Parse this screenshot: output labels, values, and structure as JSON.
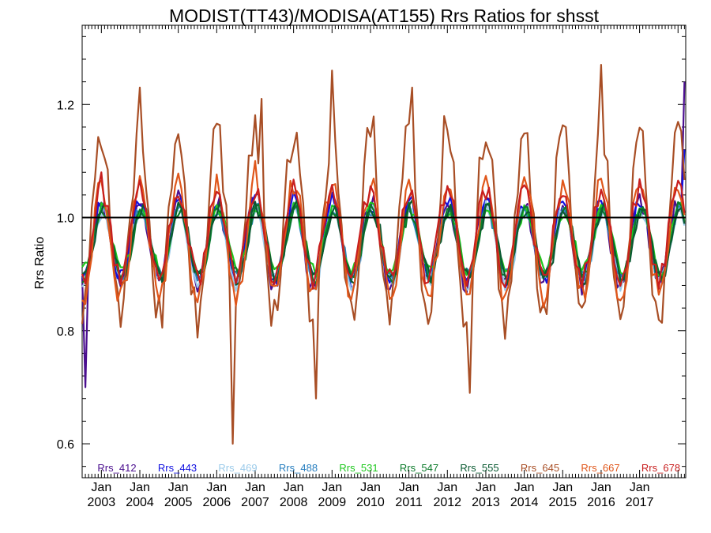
{
  "chart_data": {
    "type": "line",
    "title": "MODIST(TT43)/MODISA(AT155)  Rrs Ratios for shsst",
    "ylabel": "Rrs Ratio",
    "xlabel": "",
    "ylim": [
      0.54,
      1.34
    ],
    "xlim": [
      2002.5,
      2018.2
    ],
    "y_ticks": [
      0.6,
      0.8,
      1.0,
      1.2
    ],
    "y_tick_labels": [
      "0.6",
      "0.8",
      "1.0",
      "1.2"
    ],
    "x_tick_labels": [
      {
        "month": "Jan",
        "year": "2003",
        "x": 2003.0
      },
      {
        "month": "Jan",
        "year": "2004",
        "x": 2004.0
      },
      {
        "month": "Jan",
        "year": "2005",
        "x": 2005.0
      },
      {
        "month": "Jan",
        "year": "2006",
        "x": 2006.0
      },
      {
        "month": "Jan",
        "year": "2007",
        "x": 2007.0
      },
      {
        "month": "Jan",
        "year": "2008",
        "x": 2008.0
      },
      {
        "month": "Jan",
        "year": "2009",
        "x": 2009.0
      },
      {
        "month": "Jan",
        "year": "2010",
        "x": 2010.0
      },
      {
        "month": "Jan",
        "year": "2011",
        "x": 2011.0
      },
      {
        "month": "Jan",
        "year": "2012",
        "x": 2012.0
      },
      {
        "month": "Jan",
        "year": "2013",
        "x": 2013.0
      },
      {
        "month": "Jan",
        "year": "2014",
        "x": 2014.0
      },
      {
        "month": "Jan",
        "year": "2015",
        "x": 2015.0
      },
      {
        "month": "Jan",
        "year": "2016",
        "x": 2016.0
      },
      {
        "month": "Jan",
        "year": "2017",
        "x": 2017.0
      }
    ],
    "reference_line": {
      "y": 1.0,
      "color": "#000000"
    },
    "legend_position": "bottom",
    "grid": false,
    "series": [
      {
        "name": "Rrs_412",
        "color": "#4b0f8f",
        "amp": 0.075,
        "phase": 0.0,
        "base": 0.955,
        "seed": 1,
        "special": [
          [
            2002.55,
            0.7
          ],
          [
            2018.15,
            1.24
          ]
        ]
      },
      {
        "name": "Rrs_443",
        "color": "#1010e0",
        "amp": 0.07,
        "phase": 0.02,
        "base": 0.96,
        "seed": 2,
        "special": [
          [
            2018.15,
            1.12
          ]
        ]
      },
      {
        "name": "Rrs_469",
        "color": "#9ccbea",
        "amp": 0.065,
        "phase": 0.03,
        "base": 0.95,
        "seed": 3,
        "special": []
      },
      {
        "name": "Rrs_488",
        "color": "#2a80c0",
        "amp": 0.06,
        "phase": 0.03,
        "base": 0.955,
        "seed": 4,
        "special": []
      },
      {
        "name": "Rrs_531",
        "color": "#1ec81e",
        "amp": 0.055,
        "phase": 0.04,
        "base": 0.96,
        "seed": 5,
        "special": []
      },
      {
        "name": "Rrs_547",
        "color": "#0b7a2a",
        "amp": 0.06,
        "phase": 0.04,
        "base": 0.955,
        "seed": 6,
        "special": []
      },
      {
        "name": "Rrs_555",
        "color": "#0a5a32",
        "amp": 0.062,
        "phase": 0.05,
        "base": 0.955,
        "seed": 7,
        "special": []
      },
      {
        "name": "Rrs_645",
        "color": "#a84e25",
        "amp": 0.17,
        "phase": 0.0,
        "base": 0.99,
        "seed": 8,
        "special": [
          [
            2006.45,
            0.6
          ],
          [
            2007.2,
            1.21
          ],
          [
            2009.0,
            1.26
          ],
          [
            2011.1,
            1.23
          ],
          [
            2016.0,
            1.27
          ],
          [
            2008.55,
            0.68
          ],
          [
            2012.55,
            0.69
          ],
          [
            2004.0,
            1.23
          ]
        ]
      },
      {
        "name": "Rrs_667",
        "color": "#e0561a",
        "amp": 0.1,
        "phase": 0.01,
        "base": 0.96,
        "seed": 9,
        "special": [
          [
            2007.0,
            1.1
          ]
        ]
      },
      {
        "name": "Rrs_678",
        "color": "#c81e1e",
        "amp": 0.08,
        "phase": 0.0,
        "base": 0.97,
        "seed": 10,
        "special": [
          [
            2003.0,
            1.08
          ]
        ]
      }
    ]
  }
}
